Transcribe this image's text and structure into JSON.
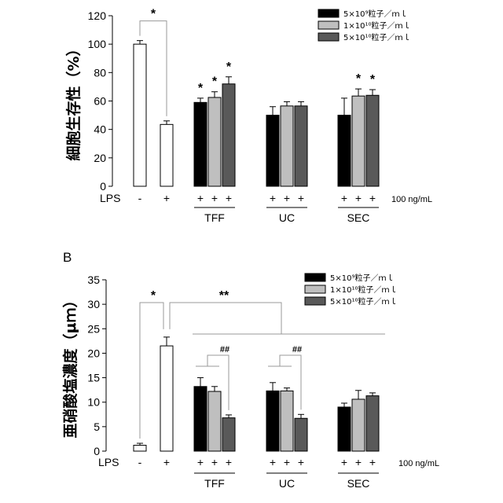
{
  "panel_b_label": "B",
  "legend": [
    {
      "label": "5×10⁹粒子／ｍｌ",
      "color": "#000000"
    },
    {
      "label": "1×10¹⁰粒子／ｍｌ",
      "color": "#bfbfbf"
    },
    {
      "label": "5×10¹⁰粒子／ｍｌ",
      "color": "#595959"
    }
  ],
  "lps_label": "LPS",
  "lps_dose": "100 ng/mL",
  "lps_signs": [
    "-",
    "+",
    "+",
    "+",
    "+",
    "+",
    "+",
    "+",
    "+",
    "+",
    "+"
  ],
  "groups": [
    "TFF",
    "UC",
    "SEC"
  ],
  "chart_data": [
    {
      "type": "bar",
      "ylabel": "細胞生存性（%）",
      "ylim": [
        0,
        120
      ],
      "yticks": [
        0,
        20,
        40,
        60,
        80,
        100,
        120
      ],
      "controls": [
        {
          "lps": "-",
          "value": 100,
          "err": 2.5
        },
        {
          "lps": "+",
          "value": 43.5,
          "err": 2.5
        }
      ],
      "groups": [
        "TFF",
        "UC",
        "SEC"
      ],
      "series": [
        {
          "name": "5×10⁹粒子／ｍｌ",
          "values": [
            59,
            50,
            50
          ],
          "errors": [
            3,
            6,
            12
          ]
        },
        {
          "name": "1×10¹⁰粒子／ｍｌ",
          "values": [
            62.5,
            56.5,
            63.5
          ],
          "errors": [
            4,
            3,
            5
          ]
        },
        {
          "name": "5×10¹⁰粒子／ｍｌ",
          "values": [
            72,
            56.5,
            64
          ],
          "errors": [
            5,
            3,
            4
          ]
        }
      ],
      "annotations": [
        "*",
        "*",
        "*",
        "*",
        "*",
        "*"
      ]
    },
    {
      "type": "bar",
      "ylabel": "亜硝酸塩濃度（μｍ）",
      "ylim": [
        0,
        35
      ],
      "yticks": [
        0,
        5,
        10,
        15,
        20,
        25,
        30,
        35
      ],
      "controls": [
        {
          "lps": "-",
          "value": 1.2,
          "err": 0.4
        },
        {
          "lps": "+",
          "value": 21.5,
          "err": 1.8
        }
      ],
      "groups": [
        "TFF",
        "UC",
        "SEC"
      ],
      "series": [
        {
          "name": "5×10⁹粒子／ｍｌ",
          "values": [
            13.2,
            12.3,
            9.0
          ],
          "errors": [
            1.8,
            1.7,
            0.8
          ]
        },
        {
          "name": "1×10¹⁰粒子／ｍｌ",
          "values": [
            12.2,
            12.3,
            10.6
          ],
          "errors": [
            1.0,
            0.6,
            1.8
          ]
        },
        {
          "name": "5×10¹⁰粒子／ｍｌ",
          "values": [
            6.8,
            6.7,
            11.3
          ],
          "errors": [
            0.6,
            0.8,
            0.6
          ]
        }
      ],
      "annotations": [
        "*",
        "**",
        "##",
        "##"
      ]
    }
  ]
}
